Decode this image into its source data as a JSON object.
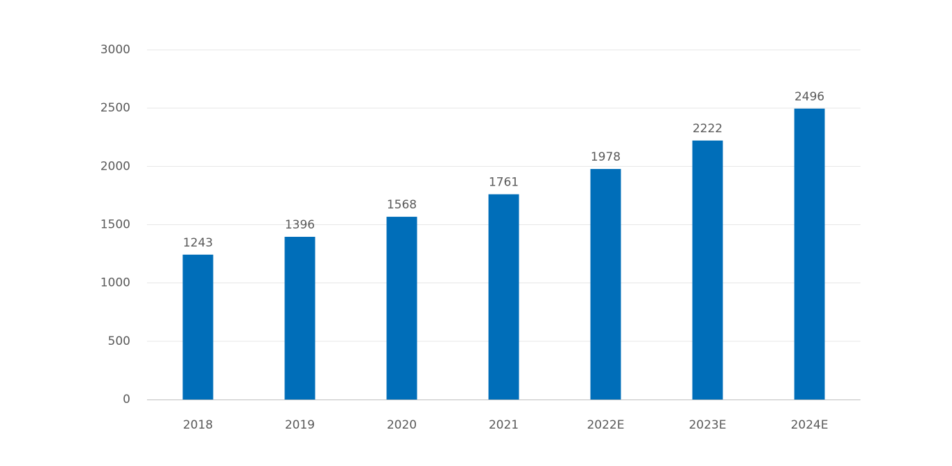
{
  "chart_data": {
    "type": "bar",
    "title": "",
    "xlabel": "",
    "ylabel": "",
    "categories": [
      "2018",
      "2019",
      "2020",
      "2021",
      "2022E",
      "2023E",
      "2024E"
    ],
    "series": [
      {
        "values": [
          1243,
          1396,
          1568,
          1761,
          1978,
          2222,
          2496
        ],
        "data_labels": [
          "1243",
          "1396",
          "1568",
          "1761",
          "1978",
          "2222",
          "2496"
        ],
        "color": "#006eb9"
      }
    ],
    "ylim": [
      0,
      3000
    ],
    "yticks": [
      0,
      500,
      1000,
      1500,
      2000,
      2500,
      3000
    ],
    "ytick_labels": [
      "0",
      "500",
      "1000",
      "1500",
      "2000",
      "2500",
      "3000"
    ],
    "grid": true,
    "legend": "none",
    "colors": {
      "bar": "#006eb9",
      "text": "#595959",
      "grid": "#e6e6e6",
      "axis": "#bfbfbf"
    }
  }
}
